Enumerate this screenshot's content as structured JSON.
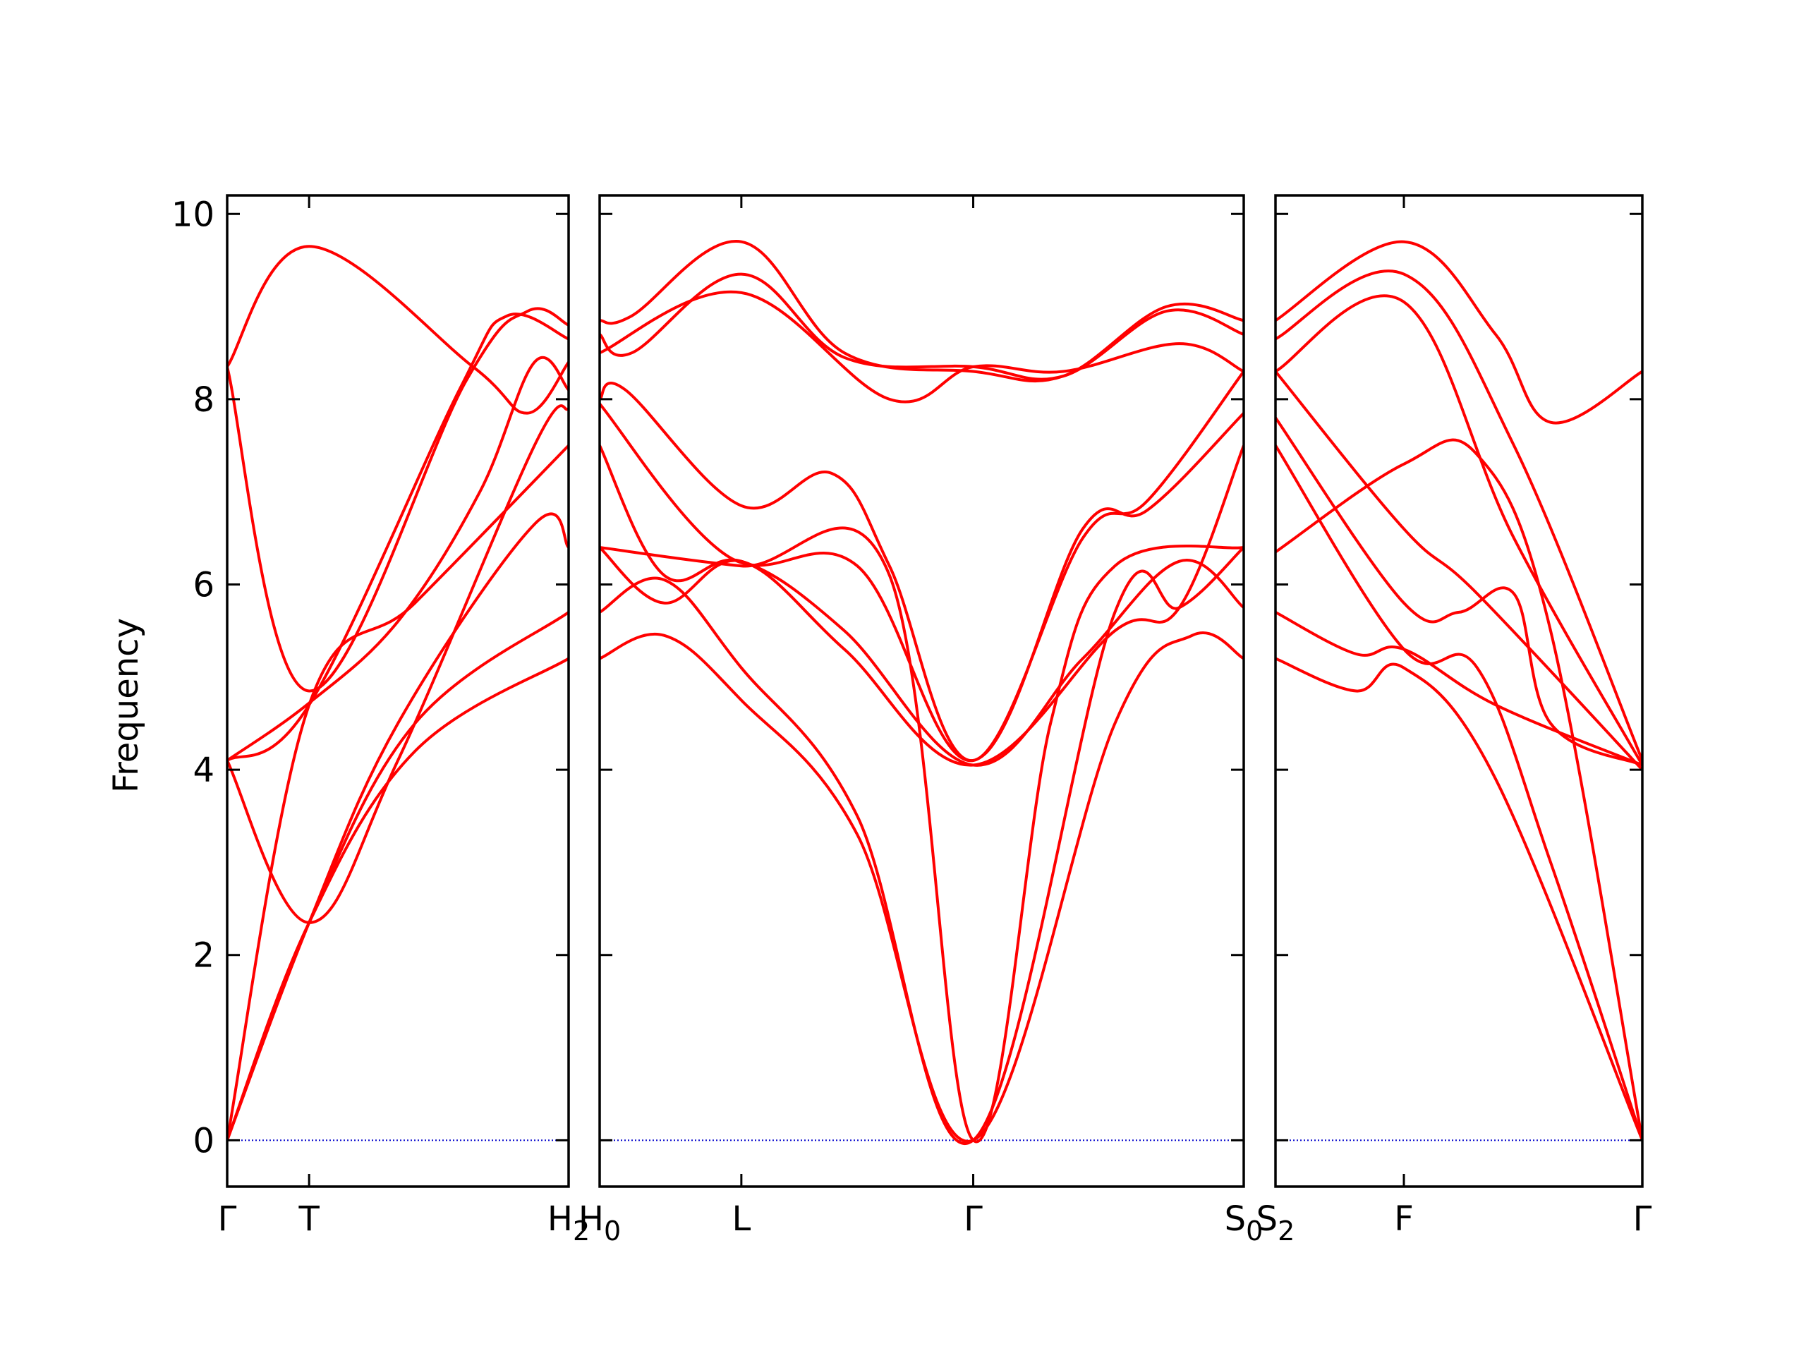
{
  "chart_data": {
    "type": "line",
    "title": "",
    "ylabel": "Frequency",
    "ylim": [
      -0.5,
      10.2
    ],
    "grid": false,
    "legend": "none",
    "colors": {
      "bands": "#ff0000",
      "zero_line": "#0000cc",
      "axes": "#000000"
    },
    "y_ticks": [
      "0",
      "2",
      "4",
      "6",
      "8",
      "10"
    ],
    "y_tick_values": [
      0,
      2,
      4,
      6,
      8,
      10
    ],
    "panels": [
      {
        "x_range": [
          0,
          1
        ],
        "ticks": [
          {
            "x": 0.0,
            "label": "Γ"
          },
          {
            "x": 0.24,
            "label": "T"
          },
          {
            "x": 1.0,
            "label": "H",
            "sub": "2"
          }
        ],
        "series": [
          {
            "x": [
              0,
              0.24,
              0.72,
              0.88,
              1.0
            ],
            "y": [
              8.35,
              9.65,
              8.35,
              7.85,
              8.4
            ]
          },
          {
            "x": [
              0,
              0.24,
              0.7,
              0.88,
              1.0
            ],
            "y": [
              8.35,
              4.85,
              8.2,
              8.95,
              8.8
            ]
          },
          {
            "x": [
              0,
              0.24,
              0.68,
              0.82,
              1.0
            ],
            "y": [
              4.1,
              4.7,
              8.1,
              8.9,
              8.65
            ]
          },
          {
            "x": [
              0,
              0.24,
              0.5,
              0.74,
              0.9,
              1.0
            ],
            "y": [
              4.1,
              4.72,
              5.6,
              7.0,
              8.4,
              8.1
            ]
          },
          {
            "x": [
              0,
              0.24,
              0.5,
              0.9,
              1.0
            ],
            "y": [
              4.1,
              2.35,
              4.1,
              7.5,
              7.9
            ]
          },
          {
            "x": [
              0,
              0.24,
              0.5,
              0.9,
              1.0
            ],
            "y": [
              0,
              2.35,
              4.5,
              6.65,
              6.4
            ]
          },
          {
            "x": [
              0,
              0.24,
              0.55,
              1.0
            ],
            "y": [
              0,
              4.7,
              5.8,
              7.5
            ]
          },
          {
            "x": [
              0,
              0.24,
              0.55,
              1.0
            ],
            "y": [
              0,
              2.35,
              4.5,
              5.7
            ]
          },
          {
            "x": [
              0,
              0.24,
              0.55,
              1.0
            ],
            "y": [
              0,
              2.35,
              4.2,
              5.2
            ]
          }
        ]
      },
      {
        "x_range": [
          0,
          1
        ],
        "ticks": [
          {
            "x": 0.0,
            "label": "H",
            "sub": "0"
          },
          {
            "x": 0.22,
            "label": "L"
          },
          {
            "x": 0.58,
            "label": "Γ"
          },
          {
            "x": 1.0,
            "label": "S",
            "sub": "0"
          }
        ],
        "series": [
          {
            "x": [
              0,
              0.05,
              0.22,
              0.38,
              0.58,
              0.72,
              0.88,
              1.0
            ],
            "y": [
              8.85,
              8.9,
              9.7,
              8.5,
              8.3,
              8.25,
              9.0,
              8.85
            ]
          },
          {
            "x": [
              0,
              0.05,
              0.22,
              0.38,
              0.58,
              0.72,
              0.88,
              1.0
            ],
            "y": [
              8.7,
              8.5,
              9.35,
              8.45,
              8.35,
              8.25,
              8.95,
              8.7
            ]
          },
          {
            "x": [
              0,
              0.22,
              0.45,
              0.58,
              0.72,
              0.9,
              1.0
            ],
            "y": [
              8.5,
              9.15,
              8.0,
              8.35,
              8.3,
              8.6,
              8.3
            ]
          },
          {
            "x": [
              0,
              0.04,
              0.22,
              0.36,
              0.45,
              0.58,
              0.75,
              0.85,
              1.0
            ],
            "y": [
              8.0,
              8.1,
              6.85,
              7.2,
              6.2,
              4.1,
              6.5,
              6.9,
              8.3
            ]
          },
          {
            "x": [
              0,
              0.2,
              0.4,
              0.58,
              0.75,
              0.85,
              1.0
            ],
            "y": [
              7.95,
              6.3,
              6.2,
              4.1,
              6.6,
              6.8,
              7.85
            ]
          },
          {
            "x": [
              0,
              0.1,
              0.22,
              0.38,
              0.58,
              0.75,
              0.9,
              1.0
            ],
            "y": [
              7.5,
              6.1,
              6.25,
              5.5,
              4.05,
              5.2,
              6.25,
              5.75
            ]
          },
          {
            "x": [
              0,
              0.1,
              0.22,
              0.38,
              0.58,
              0.8,
              0.9,
              1.0
            ],
            "y": [
              6.4,
              5.8,
              6.25,
              5.3,
              4.05,
              5.5,
              5.75,
              7.5
            ]
          },
          {
            "x": [
              0,
              0.1,
              0.22,
              0.4,
              0.58,
              0.8,
              0.9,
              1.0
            ],
            "y": [
              5.7,
              6.05,
              5.1,
              3.5,
              0,
              5.7,
              5.75,
              6.4
            ]
          },
          {
            "x": [
              0,
              0.1,
              0.22,
              0.4,
              0.58,
              0.8,
              0.92,
              1.0
            ],
            "y": [
              5.2,
              5.45,
              4.75,
              3.3,
              0,
              4.5,
              5.45,
              5.2
            ]
          },
          {
            "x": [
              0,
              0.22,
              0.45,
              0.58,
              0.7,
              0.8,
              1.0
            ],
            "y": [
              6.4,
              6.2,
              6.1,
              0,
              4.5,
              6.2,
              6.4
            ]
          }
        ]
      },
      {
        "x_range": [
          0,
          1
        ],
        "ticks": [
          {
            "x": 0.0,
            "label": "S",
            "sub": "2"
          },
          {
            "x": 0.35,
            "label": "F"
          },
          {
            "x": 1.0,
            "label": "Γ"
          }
        ],
        "series": [
          {
            "x": [
              0,
              0.35,
              0.6,
              0.75,
              1.0
            ],
            "y": [
              8.85,
              9.7,
              8.7,
              7.75,
              8.3
            ]
          },
          {
            "x": [
              0,
              0.35,
              0.65,
              1.0
            ],
            "y": [
              8.65,
              9.35,
              7.5,
              4.1
            ]
          },
          {
            "x": [
              0,
              0.35,
              0.65,
              1.0
            ],
            "y": [
              8.3,
              9.05,
              6.5,
              4.05
            ]
          },
          {
            "x": [
              0,
              0.35,
              0.55,
              1.0
            ],
            "y": [
              8.3,
              6.6,
              5.9,
              4.0
            ]
          },
          {
            "x": [
              0,
              0.35,
              0.5,
              0.65,
              0.75,
              1.0
            ],
            "y": [
              7.8,
              5.8,
              5.7,
              5.9,
              4.5,
              4.05
            ]
          },
          {
            "x": [
              0,
              0.35,
              0.55,
              0.75,
              1.0
            ],
            "y": [
              7.5,
              5.3,
              5.1,
              3.0,
              0
            ]
          },
          {
            "x": [
              0,
              0.35,
              0.55,
              0.75,
              1.0
            ],
            "y": [
              6.35,
              7.3,
              7.4,
              5.5,
              0
            ]
          },
          {
            "x": [
              0,
              0.22,
              0.35,
              0.6,
              1.0
            ],
            "y": [
              5.7,
              5.25,
              5.3,
              4.7,
              4.05
            ]
          },
          {
            "x": [
              0,
              0.22,
              0.35,
              0.6,
              1.0
            ],
            "y": [
              5.2,
              4.85,
              5.1,
              3.9,
              0
            ]
          }
        ]
      }
    ]
  }
}
